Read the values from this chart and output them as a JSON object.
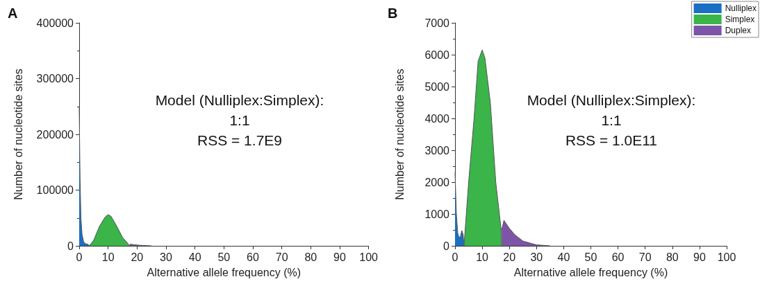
{
  "chart_data": [
    {
      "type": "area",
      "title": "A",
      "xlabel": "Alternative allele frequency (%)",
      "ylabel": "Number of nucleotide sites",
      "annotations": [
        "Model (Nulliplex:Simplex):",
        "1:1",
        "RSS = 1.7E9"
      ],
      "xlim": [
        0,
        100
      ],
      "xticks": [
        0,
        10,
        20,
        30,
        40,
        50,
        60,
        70,
        80,
        90,
        100
      ],
      "ylim": [
        0,
        400000
      ],
      "yticks": [
        0,
        100000,
        200000,
        300000,
        400000
      ],
      "grid": false,
      "legend": false,
      "series": [
        {
          "color": "#1a6fc4",
          "x": [
            0,
            0.3,
            0.6,
            1,
            1.5,
            2,
            3,
            3.5
          ],
          "values": [
            250000,
            120000,
            50000,
            20000,
            8000,
            4000,
            3000,
            0
          ]
        },
        {
          "color": "#3bb44a",
          "x": [
            3.5,
            5,
            7,
            9,
            10,
            11,
            13,
            15,
            17,
            17.5
          ],
          "values": [
            0,
            10000,
            35000,
            52000,
            56000,
            53000,
            35000,
            15000,
            3000,
            0
          ]
        },
        {
          "color": "#7d55a8",
          "x": [
            17.5,
            19,
            21,
            25
          ],
          "values": [
            3000,
            2000,
            1000,
            0
          ]
        }
      ]
    },
    {
      "type": "area",
      "title": "B",
      "xlabel": "Alternative allele frequency (%)",
      "ylabel": "Number of nucleotide sites",
      "annotations": [
        "Model (Nulliplex:Simplex):",
        "1:1",
        "RSS = 1.0E11"
      ],
      "xlim": [
        0,
        100
      ],
      "xticks": [
        0,
        10,
        20,
        30,
        40,
        50,
        60,
        70,
        80,
        90,
        100
      ],
      "ylim": [
        0,
        7000
      ],
      "yticks": [
        0,
        1000,
        2000,
        3000,
        4000,
        5000,
        6000,
        7000
      ],
      "grid": false,
      "legend": "top right",
      "series": [
        {
          "name": "Nulliplex",
          "color": "#1a6fc4",
          "x": [
            0,
            0.5,
            1,
            1.5,
            2,
            2.5,
            3,
            3.3
          ],
          "values": [
            2300,
            1000,
            400,
            250,
            300,
            480,
            350,
            0
          ]
        },
        {
          "name": "Simplex",
          "color": "#3bb44a",
          "x": [
            3.3,
            5,
            7,
            8.5,
            10,
            11,
            13,
            15,
            17,
            17.2
          ],
          "values": [
            0,
            2000,
            4000,
            5800,
            6150,
            5900,
            4500,
            2000,
            500,
            0
          ]
        },
        {
          "name": "Duplex",
          "color": "#7d55a8",
          "x": [
            17.2,
            18,
            20,
            22,
            25,
            30,
            35
          ],
          "values": [
            500,
            800,
            550,
            350,
            150,
            30,
            0
          ]
        }
      ]
    }
  ]
}
